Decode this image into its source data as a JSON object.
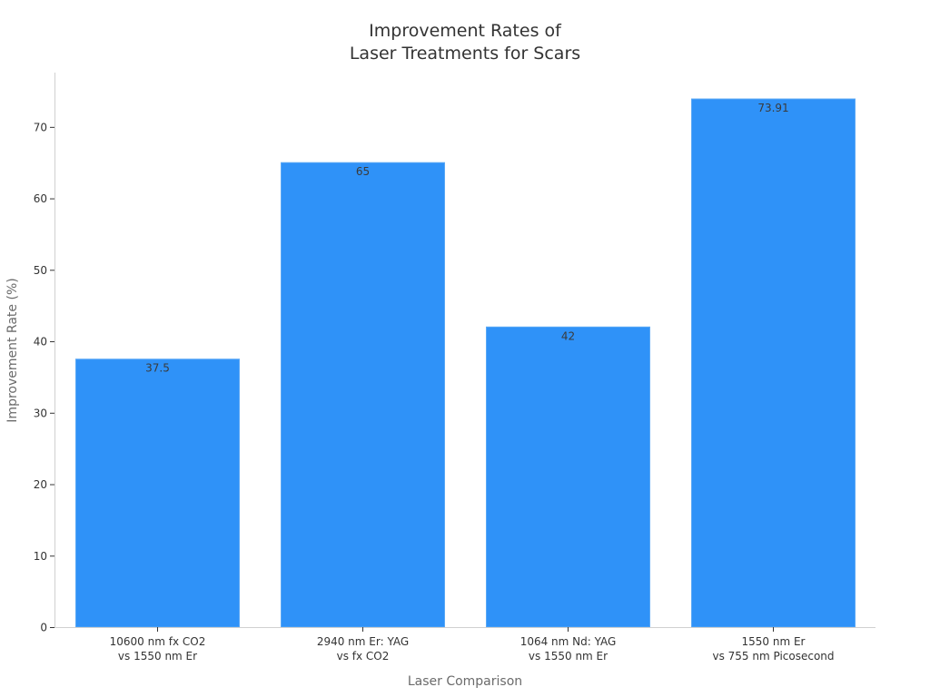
{
  "chart_data": {
    "type": "bar",
    "title_lines": [
      "Improvement Rates of",
      "Laser Treatments for Scars"
    ],
    "xlabel": "Laser Comparison",
    "ylabel": "Improvement Rate (%)",
    "categories": [
      [
        "10600 nm fx CO2",
        "vs 1550 nm Er"
      ],
      [
        "2940 nm Er: YAG",
        "vs fx CO2"
      ],
      [
        "1064 nm Nd: YAG",
        "vs 1550 nm Er"
      ],
      [
        "1550 nm Er",
        "vs 755 nm Picosecond"
      ]
    ],
    "values": [
      37.5,
      65,
      42,
      73.91
    ],
    "data_labels": [
      "37.5",
      "65",
      "42",
      "73.91"
    ],
    "yticks": [
      0,
      10,
      20,
      30,
      40,
      50,
      60,
      70
    ],
    "ylim": [
      0,
      77.6
    ],
    "bar_color": "#2f92f8",
    "grid": false,
    "legend": "none"
  }
}
